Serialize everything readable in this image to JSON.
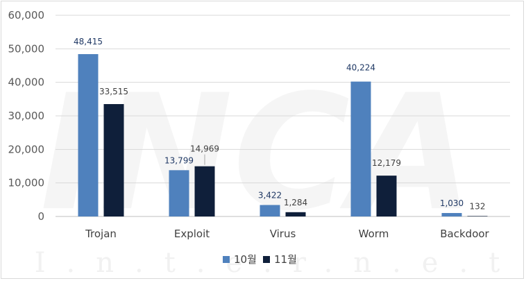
{
  "chart_data": {
    "type": "bar",
    "title": "",
    "xlabel": "",
    "ylabel": "",
    "categories": [
      "Trojan",
      "Exploit",
      "Virus",
      "Worm",
      "Backdoor"
    ],
    "series": [
      {
        "name": "10월",
        "values": [
          48415,
          13799,
          3422,
          40224,
          1030
        ],
        "labels": [
          "48,415",
          "13,799",
          "3,422",
          "40,224",
          "1,030"
        ],
        "color": "#4f81bd",
        "label_color": "#1f3864"
      },
      {
        "name": "11월",
        "values": [
          33515,
          14969,
          1284,
          12179,
          132
        ],
        "labels": [
          "33,515",
          "14,969",
          "1,284",
          "12,179",
          "132"
        ],
        "color": "#0f1f3a",
        "label_color": "#404040"
      }
    ],
    "ylim": [
      0,
      60000
    ],
    "yticks": [
      0,
      10000,
      20000,
      30000,
      40000,
      50000,
      60000
    ],
    "ytick_labels": [
      "0",
      "10,000",
      "20,000",
      "30,000",
      "40,000",
      "50,000",
      "60,000"
    ],
    "grid": true,
    "legend": "bottom"
  },
  "watermark": {
    "logo_text": "INCA",
    "text": "I.n.t.e.r.n.e.t"
  },
  "colors": {
    "gridline": "#d9d9d9",
    "axis": "#bfbfbf"
  }
}
